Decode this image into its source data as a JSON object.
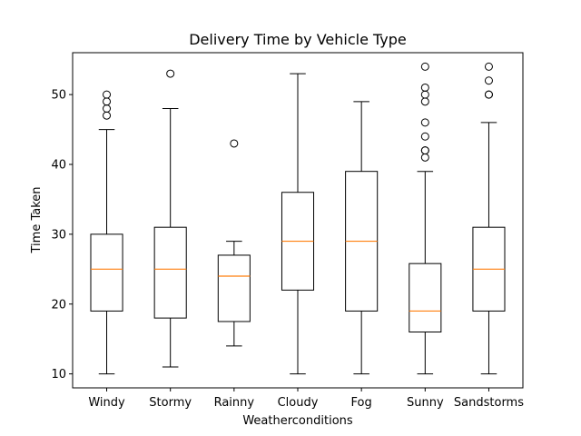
{
  "chart_data": {
    "type": "box",
    "title": "Delivery Time by Vehicle Type",
    "xlabel": "Weatherconditions",
    "ylabel": "Time Taken",
    "ylim": [
      8,
      56
    ],
    "yticks": [
      10,
      20,
      30,
      40,
      50
    ],
    "grid": false,
    "categories": [
      "Windy",
      "Stormy",
      "Rainny",
      "Cloudy",
      "Fog",
      "Sunny",
      "Sandstorms"
    ],
    "boxes": [
      {
        "whisker_low": 10,
        "q1": 19,
        "median": 25,
        "q3": 30,
        "whisker_high": 45,
        "outliers": [
          47,
          48,
          49,
          50
        ]
      },
      {
        "whisker_low": 11,
        "q1": 18,
        "median": 25,
        "q3": 31,
        "whisker_high": 48,
        "outliers": [
          53
        ]
      },
      {
        "whisker_low": 14,
        "q1": 17.5,
        "median": 24,
        "q3": 27,
        "whisker_high": 29,
        "outliers": [
          43
        ]
      },
      {
        "whisker_low": 10,
        "q1": 22,
        "median": 29,
        "q3": 36,
        "whisker_high": 53,
        "outliers": []
      },
      {
        "whisker_low": 10,
        "q1": 19,
        "median": 29,
        "q3": 39,
        "whisker_high": 49,
        "outliers": []
      },
      {
        "whisker_low": 10,
        "q1": 16,
        "median": 19,
        "q3": 25.8,
        "whisker_high": 39,
        "outliers": [
          41,
          42,
          42,
          44,
          46,
          49,
          50,
          51,
          54
        ]
      },
      {
        "whisker_low": 10,
        "q1": 19,
        "median": 25,
        "q3": 31,
        "whisker_high": 46,
        "outliers": [
          50,
          50,
          52,
          54
        ]
      }
    ],
    "colors": {
      "box": "#000000",
      "median": "#ff7f0e",
      "outlier": "#000000"
    }
  }
}
